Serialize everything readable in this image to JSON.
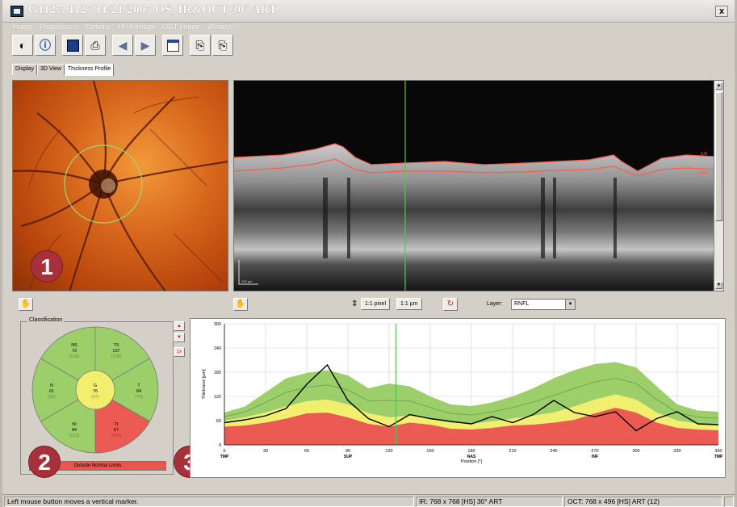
{
  "window": {
    "title": "G1127, 1127   11/21/2007   OS, IR&OCT 30° ART",
    "close_label": "x"
  },
  "menu": [
    "Image",
    "Progression",
    "Options",
    "HRA Image",
    "OCT Image",
    "Window"
  ],
  "toolbar": {
    "buttons": [
      "contrast-icon",
      "info-icon",
      "save-icon",
      "print-icon",
      "arrow-left-icon",
      "arrow-right-icon",
      "report-icon",
      "export-icon",
      "export-all-icon"
    ]
  },
  "tabs": [
    {
      "label": "Display",
      "active": false
    },
    {
      "label": "3D View",
      "active": false
    },
    {
      "label": "Thickness Profile",
      "active": true
    }
  ],
  "oct": {
    "layer_labels": [
      "ILM",
      "RNFL"
    ],
    "scale_label": "200 µm"
  },
  "controls": {
    "pixel_btn": "1:1 pixel",
    "um_btn": "1:1 µm",
    "layer_label": "Layer:",
    "layer_value": "RNFL"
  },
  "classification": {
    "legend": "Classification",
    "sectors": [
      {
        "id": "NS",
        "label": "NS",
        "value": "73",
        "ref": "(109)"
      },
      {
        "id": "TS",
        "label": "TS",
        "value": "137",
        "ref": "(138)"
      },
      {
        "id": "N",
        "label": "N",
        "value": "61",
        "ref": "(83)"
      },
      {
        "id": "G",
        "label": "G",
        "value": "76",
        "ref": "(97)"
      },
      {
        "id": "T",
        "label": "T",
        "value": "84",
        "ref": "(74)"
      },
      {
        "id": "NI",
        "label": "NI",
        "value": "84",
        "ref": "(123)"
      },
      {
        "id": "TI",
        "label": "TI",
        "value": "67",
        "ref": "(149)"
      }
    ],
    "status": "Outside Normal Limits"
  },
  "badges": [
    "1",
    "2",
    "3"
  ],
  "side_buttons": [
    "▲",
    "▼",
    "1x"
  ],
  "colors": {
    "within_normal": "#9ccf6a",
    "borderline": "#f2ee6e",
    "outside_normal": "#ec5a54",
    "marker": "#54c254",
    "badge": "#a8303a"
  },
  "chart_data": {
    "type": "area",
    "ylabel": "Thickness [µm]",
    "xlabel": "Position [°]",
    "ylim": [
      0,
      300
    ],
    "xlim": [
      0,
      360
    ],
    "yticks": [
      0,
      60,
      120,
      180,
      240,
      300
    ],
    "xticks": [
      0,
      30,
      60,
      90,
      120,
      150,
      180,
      210,
      240,
      270,
      300,
      330,
      360
    ],
    "xregion_labels": [
      {
        "x": 0,
        "label": "TMP"
      },
      {
        "x": 90,
        "label": "SUP"
      },
      {
        "x": 180,
        "label": "NAS"
      },
      {
        "x": 270,
        "label": "INF"
      },
      {
        "x": 360,
        "label": "TMP"
      }
    ],
    "marker_x": 125,
    "x": [
      0,
      15,
      30,
      45,
      60,
      75,
      90,
      105,
      120,
      135,
      150,
      165,
      180,
      195,
      210,
      225,
      240,
      255,
      270,
      285,
      300,
      315,
      330,
      345,
      360
    ],
    "series": [
      {
        "values": [
          45,
          48,
          55,
          65,
          78,
          80,
          68,
          52,
          45,
          55,
          50,
          40,
          38,
          42,
          48,
          50,
          55,
          62,
          78,
          92,
          80,
          55,
          42,
          38,
          36
        ]
      },
      {
        "values": [
          60,
          68,
          80,
          95,
          108,
          112,
          100,
          78,
          68,
          72,
          65,
          55,
          52,
          58,
          65,
          72,
          80,
          95,
          112,
          125,
          112,
          80,
          60,
          52,
          50
        ]
      },
      {
        "values": [
          80,
          95,
          130,
          165,
          178,
          185,
          172,
          140,
          152,
          145,
          120,
          100,
          96,
          105,
          120,
          140,
          165,
          185,
          200,
          205,
          192,
          145,
          100,
          85,
          82
        ]
      },
      {
        "values": [
          55,
          62,
          72,
          90,
          150,
          198,
          110,
          65,
          45,
          75,
          65,
          58,
          52,
          70,
          55,
          75,
          110,
          80,
          70,
          82,
          35,
          65,
          82,
          52,
          50
        ]
      }
    ]
  }
}
